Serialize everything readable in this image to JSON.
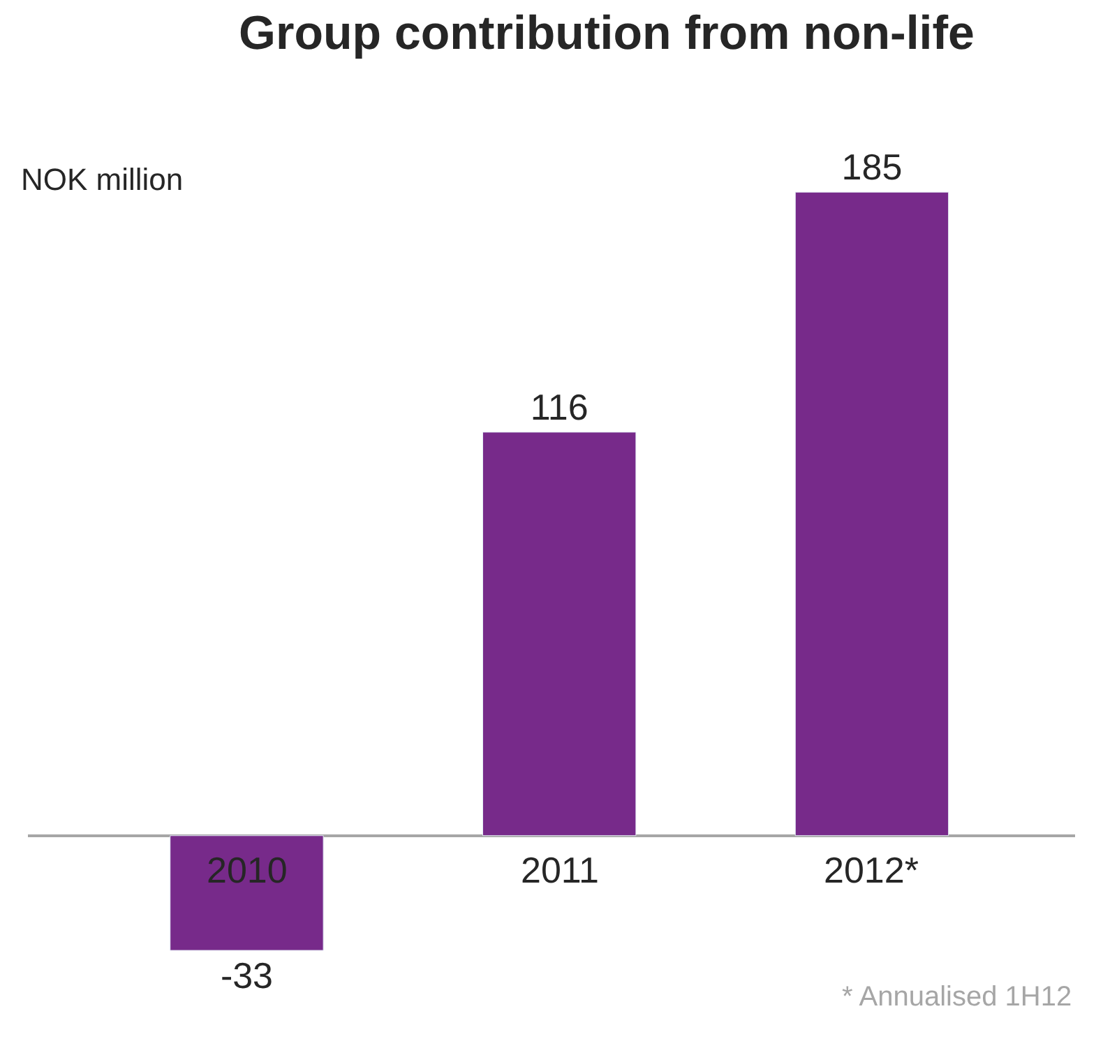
{
  "chart_data": {
    "type": "bar",
    "title": "Group contribution from non-life",
    "ylabel": "NOK million",
    "categories": [
      "2010",
      "2011",
      "2012*"
    ],
    "values": [
      -33,
      116,
      185
    ],
    "color": "#772a8a",
    "data_labels": true,
    "annotations": [
      "* Annualised 1H12"
    ]
  }
}
